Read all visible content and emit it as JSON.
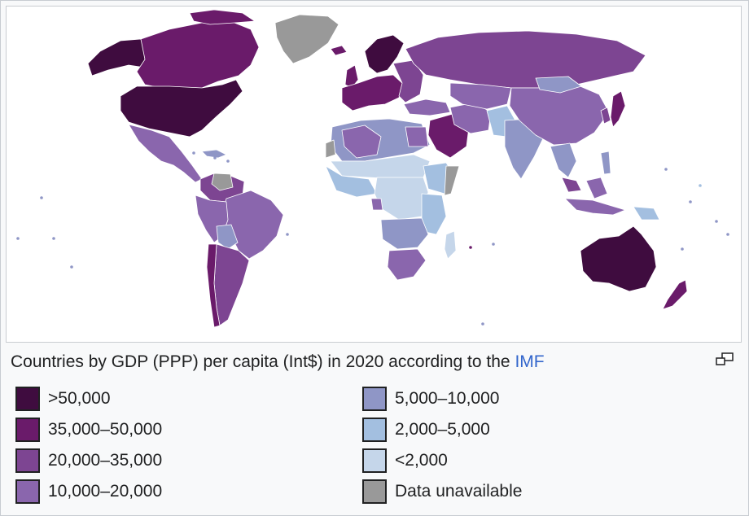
{
  "caption": {
    "text": "Countries by GDP (PPP) per capita (Int$) in 2020 according to the ",
    "link_text": "IMF"
  },
  "legend": {
    "left": [
      {
        "label": ">50,000",
        "color": "#3f0c3f"
      },
      {
        "label": "35,000–50,000",
        "color": "#6a1b6a"
      },
      {
        "label": "20,000–35,000",
        "color": "#7d4592"
      },
      {
        "label": "10,000–20,000",
        "color": "#8a66ad"
      }
    ],
    "right": [
      {
        "label": "5,000–10,000",
        "color": "#8f96c6"
      },
      {
        "label": "2,000–5,000",
        "color": "#a3bfe0"
      },
      {
        "label": "<2,000",
        "color": "#c5d6ea"
      },
      {
        "label": "Data unavailable",
        "color": "#999999"
      }
    ]
  },
  "map_colors": {
    "ocean": "#ffffff",
    "border": "#ffffff",
    "gt50000": "#3f0c3f",
    "35000_50000": "#6a1b6a",
    "20000_35000": "#7d4592",
    "10000_20000": "#8a66ad",
    "5000_10000": "#8f96c6",
    "2000_5000": "#a3bfe0",
    "lt2000": "#c5d6ea",
    "unavailable": "#999999"
  },
  "icons": {
    "magnify": "magnify-clip-icon"
  }
}
